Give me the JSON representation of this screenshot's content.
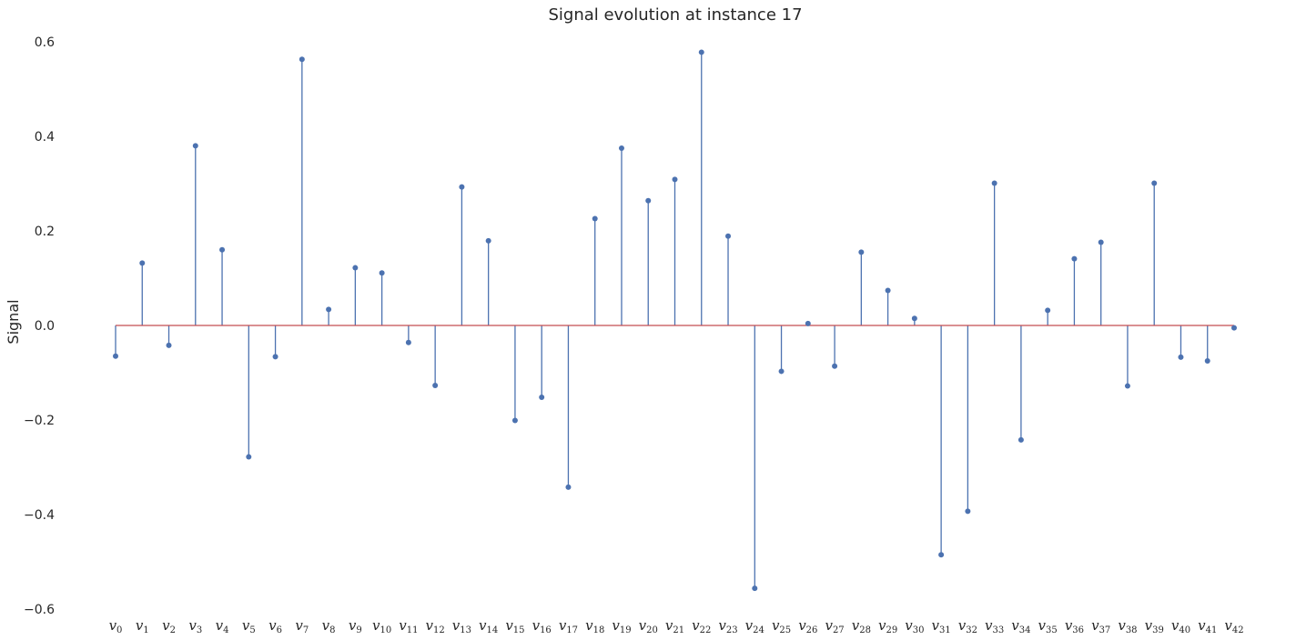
{
  "chart_data": {
    "type": "stem",
    "title": "Signal evolution at instance 17",
    "xlabel": "",
    "ylabel": "Signal",
    "ylim": [
      -0.6,
      0.6
    ],
    "yticks": [
      -0.6,
      -0.4,
      -0.2,
      0.0,
      0.2,
      0.4,
      0.6
    ],
    "ytick_labels": [
      "−0.6",
      "−0.4",
      "−0.2",
      "0.0",
      "0.2",
      "0.4",
      "0.6"
    ],
    "grid": false,
    "baseline": 0,
    "categories": [
      "v0",
      "v1",
      "v2",
      "v3",
      "v4",
      "v5",
      "v6",
      "v7",
      "v8",
      "v9",
      "v10",
      "v11",
      "v12",
      "v13",
      "v14",
      "v15",
      "v16",
      "v17",
      "v18",
      "v19",
      "v20",
      "v21",
      "v22",
      "v23",
      "v24",
      "v25",
      "v26",
      "v27",
      "v28",
      "v29",
      "v30",
      "v31",
      "v32",
      "v33",
      "v34",
      "v35",
      "v36",
      "v37",
      "v38",
      "v39",
      "v40",
      "v41",
      "v42"
    ],
    "values": [
      -0.065,
      0.132,
      -0.042,
      0.38,
      0.16,
      -0.278,
      -0.066,
      0.563,
      0.034,
      0.122,
      0.111,
      -0.036,
      -0.127,
      0.293,
      0.179,
      -0.201,
      -0.152,
      -0.342,
      0.226,
      0.375,
      0.264,
      0.309,
      0.578,
      0.189,
      -0.556,
      -0.097,
      0.004,
      -0.086,
      0.155,
      0.074,
      0.015,
      -0.485,
      -0.393,
      0.301,
      -0.242,
      0.032,
      0.141,
      0.176,
      -0.128,
      0.301,
      -0.067,
      -0.075,
      -0.005
    ],
    "colors": {
      "stem": "#4c72b0",
      "baseline": "#c44e52",
      "text": "#262626"
    }
  }
}
